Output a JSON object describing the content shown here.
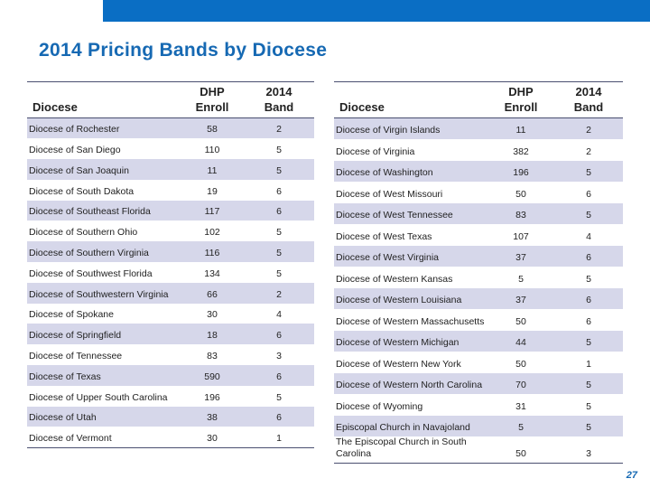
{
  "title": "2014 Pricing Bands by Diocese",
  "page_number": "27",
  "colors": {
    "accent": "#0a6ec4",
    "title": "#1669b3",
    "row_shade": "#d6d7ea"
  },
  "headers": {
    "diocese": "Diocese",
    "enroll_1": "DHP",
    "enroll_2": "Enroll",
    "band_1": "2014",
    "band_2": "Band"
  },
  "left_rows": [
    {
      "name": "Diocese of Rochester",
      "enroll": "58",
      "band": "2"
    },
    {
      "name": "Diocese of San Diego",
      "enroll": "110",
      "band": "5"
    },
    {
      "name": "Diocese of San Joaquin",
      "enroll": "11",
      "band": "5"
    },
    {
      "name": "Diocese of South Dakota",
      "enroll": "19",
      "band": "6"
    },
    {
      "name": "Diocese of Southeast Florida",
      "enroll": "117",
      "band": "6"
    },
    {
      "name": "Diocese of Southern Ohio",
      "enroll": "102",
      "band": "5"
    },
    {
      "name": "Diocese of Southern Virginia",
      "enroll": "116",
      "band": "5"
    },
    {
      "name": "Diocese of Southwest Florida",
      "enroll": "134",
      "band": "5"
    },
    {
      "name": "Diocese of Southwestern Virginia",
      "enroll": "66",
      "band": "2"
    },
    {
      "name": "Diocese of Spokane",
      "enroll": "30",
      "band": "4"
    },
    {
      "name": "Diocese of Springfield",
      "enroll": "18",
      "band": "6"
    },
    {
      "name": "Diocese of Tennessee",
      "enroll": "83",
      "band": "3"
    },
    {
      "name": "Diocese of Texas",
      "enroll": "590",
      "band": "6"
    },
    {
      "name": "Diocese of Upper South Carolina",
      "enroll": "196",
      "band": "5"
    },
    {
      "name": "Diocese of Utah",
      "enroll": "38",
      "band": "6"
    },
    {
      "name": "Diocese of Vermont",
      "enroll": "30",
      "band": "1"
    }
  ],
  "right_rows": [
    {
      "name": "Diocese of Virgin Islands",
      "enroll": "11",
      "band": "2"
    },
    {
      "name": "Diocese of Virginia",
      "enroll": "382",
      "band": "2"
    },
    {
      "name": "Diocese of Washington",
      "enroll": "196",
      "band": "5"
    },
    {
      "name": "Diocese of West Missouri",
      "enroll": "50",
      "band": "6"
    },
    {
      "name": "Diocese of West Tennessee",
      "enroll": "83",
      "band": "5"
    },
    {
      "name": "Diocese of West Texas",
      "enroll": "107",
      "band": "4"
    },
    {
      "name": "Diocese of West Virginia",
      "enroll": "37",
      "band": "6"
    },
    {
      "name": "Diocese of Western Kansas",
      "enroll": "5",
      "band": "5"
    },
    {
      "name": "Diocese of Western Louisiana",
      "enroll": "37",
      "band": "6"
    },
    {
      "name": "Diocese of Western Massachusetts",
      "enroll": "50",
      "band": "6"
    },
    {
      "name": "Diocese of Western Michigan",
      "enroll": "44",
      "band": "5"
    },
    {
      "name": "Diocese of Western New York",
      "enroll": "50",
      "band": "1"
    },
    {
      "name": "Diocese of Western North Carolina",
      "enroll": "70",
      "band": "5"
    },
    {
      "name": "Diocese of Wyoming",
      "enroll": "31",
      "band": "5"
    },
    {
      "name": "Episcopal Church in Navajoland",
      "enroll": "5",
      "band": "5"
    },
    {
      "name": "The Episcopal Church in South Carolina",
      "enroll": "50",
      "band": "3"
    }
  ]
}
